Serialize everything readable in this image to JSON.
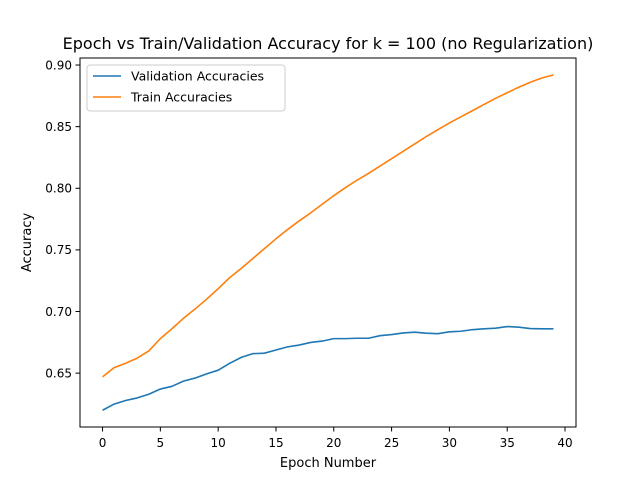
{
  "chart_data": {
    "type": "line",
    "title": "Epoch vs Train/Validation Accuracy for k = 100 (no Regularization)",
    "xlabel": "Epoch Number",
    "ylabel": "Accuracy",
    "xlim": [
      -1.95,
      40.95
    ],
    "ylim": [
      0.6063,
      0.9057
    ],
    "xticks": [
      0,
      5,
      10,
      15,
      20,
      25,
      30,
      35,
      40
    ],
    "yticks": [
      0.65,
      0.7,
      0.75,
      0.8,
      0.85,
      0.9
    ],
    "ytick_labels": [
      "0.65",
      "0.70",
      "0.75",
      "0.80",
      "0.85",
      "0.90"
    ],
    "grid": false,
    "legend_position": "top-left",
    "x": [
      0,
      1,
      2,
      3,
      4,
      5,
      6,
      7,
      8,
      9,
      10,
      11,
      12,
      13,
      14,
      15,
      16,
      17,
      18,
      19,
      20,
      21,
      22,
      23,
      24,
      25,
      26,
      27,
      28,
      29,
      30,
      31,
      32,
      33,
      34,
      35,
      36,
      37,
      38,
      39
    ],
    "series": [
      {
        "name": "Validation Accuracies",
        "color": "#1f77b4",
        "values": [
          0.6199,
          0.6249,
          0.6278,
          0.6299,
          0.6329,
          0.6371,
          0.6393,
          0.6435,
          0.646,
          0.6494,
          0.6524,
          0.658,
          0.6628,
          0.6658,
          0.6662,
          0.6688,
          0.6713,
          0.6728,
          0.6749,
          0.676,
          0.678,
          0.678,
          0.6783,
          0.6783,
          0.6804,
          0.6813,
          0.6826,
          0.6832,
          0.6824,
          0.682,
          0.6835,
          0.684,
          0.6853,
          0.686,
          0.6865,
          0.6878,
          0.6873,
          0.6862,
          0.686,
          0.686
        ]
      },
      {
        "name": "Train Accuracies",
        "color": "#ff7f0e",
        "values": [
          0.647,
          0.6545,
          0.658,
          0.6622,
          0.668,
          0.678,
          0.686,
          0.6945,
          0.702,
          0.71,
          0.7185,
          0.7275,
          0.735,
          0.743,
          0.751,
          0.759,
          0.7665,
          0.7735,
          0.78,
          0.787,
          0.794,
          0.8005,
          0.8065,
          0.812,
          0.818,
          0.824,
          0.83,
          0.836,
          0.842,
          0.8475,
          0.853,
          0.858,
          0.863,
          0.868,
          0.873,
          0.8775,
          0.882,
          0.886,
          0.8895,
          0.892
        ]
      }
    ]
  }
}
